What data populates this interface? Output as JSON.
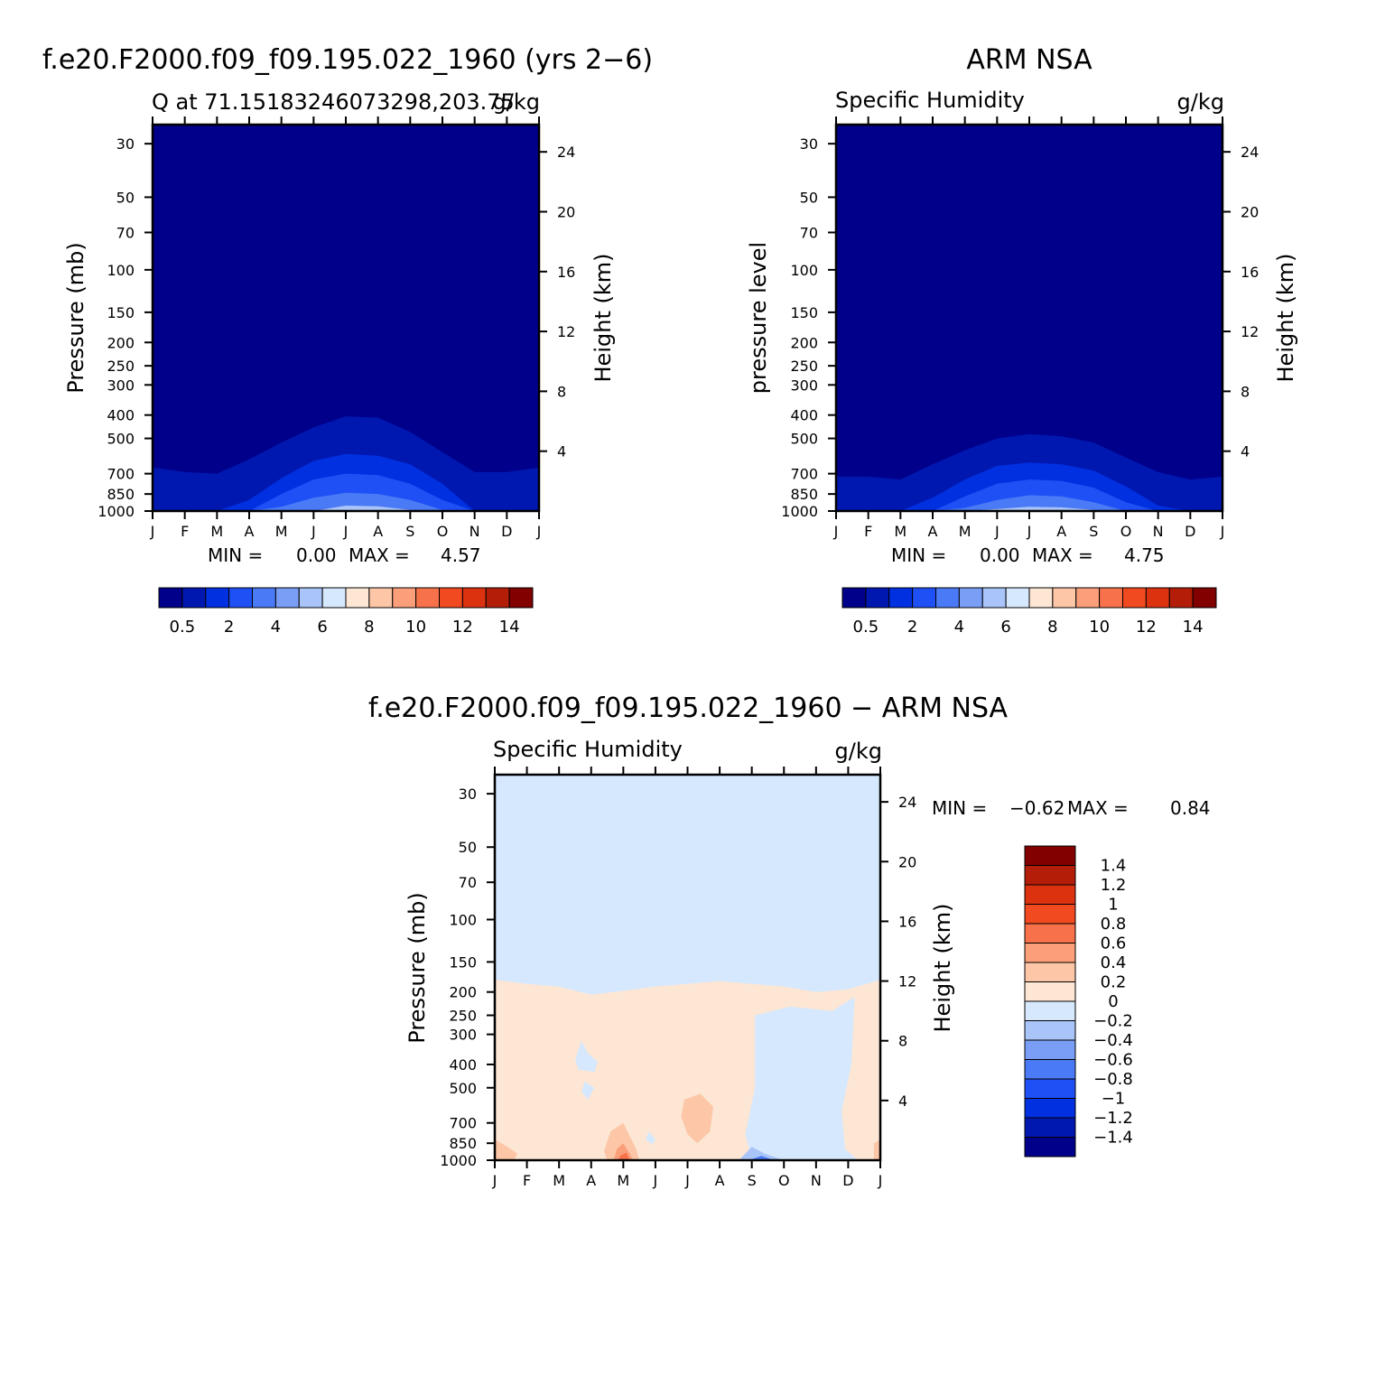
{
  "palette": {
    "level_colors": [
      "#00008a",
      "#0018b0",
      "#0030e0",
      "#1e50f5",
      "#4a7af5",
      "#7a9ef5",
      "#a8c4f8",
      "#d6e8fd",
      "#fde6d4",
      "#fcc6a7",
      "#fb9f7a",
      "#f7724a",
      "#f24a20",
      "#dc3210",
      "#b41e08",
      "#820000"
    ],
    "diff_colors": [
      "#00008a",
      "#0018b0",
      "#0030e0",
      "#1e50f5",
      "#4a7af5",
      "#7a9ef5",
      "#a8c4f8",
      "#d6e8fd",
      "#fde6d4",
      "#fcc6a7",
      "#fb9f7a",
      "#f7724a",
      "#f24a20",
      "#dc3210",
      "#b41e08",
      "#820000"
    ]
  },
  "panels": {
    "model": {
      "title": "f.e20.F2000.f09_f09.195.022_1960 (yrs 2−6)",
      "left_subtitle": "Q at 71.15183246073298,203.75",
      "right_subtitle": "g/kg",
      "ylabel": "Pressure (mb)",
      "ylabel_right": "Height (km)",
      "min_label": "MIN =",
      "min_value": "0.00",
      "max_label": "MAX =",
      "max_value": "4.57"
    },
    "obs": {
      "title": "ARM NSA",
      "left_subtitle": "Specific Humidity",
      "right_subtitle": "g/kg",
      "ylabel": "pressure level",
      "ylabel_right": "Height (km)",
      "min_label": "MIN =",
      "min_value": "0.00",
      "max_label": "MAX =",
      "max_value": "4.75"
    },
    "diff": {
      "title": "f.e20.F2000.f09_f09.195.022_1960 − ARM NSA",
      "left_subtitle": "Specific Humidity",
      "right_subtitle": "g/kg",
      "ylabel": "Pressure (mb)",
      "ylabel_right": "Height (km)",
      "min_label": "MIN =",
      "min_value": "−0.62",
      "max_label": "MAX =",
      "max_value": "0.84"
    }
  },
  "chart_data": [
    {
      "type": "heatmap",
      "title": "f.e20.F2000.f09_f09.195.022_1960 (yrs 2−6)",
      "subtitle": "Q at 71.15183246073298,203.75",
      "units": "g/kg",
      "x_tick_labels": [
        "J",
        "F",
        "M",
        "A",
        "M",
        "J",
        "J",
        "A",
        "S",
        "O",
        "N",
        "D",
        "J"
      ],
      "y_tick_labels": [
        "30",
        "50",
        "70",
        "100",
        "150",
        "200",
        "250",
        "300",
        "400",
        "500",
        "700",
        "850",
        "1000"
      ],
      "y_tick_values": [
        30,
        50,
        70,
        100,
        150,
        200,
        250,
        300,
        400,
        500,
        700,
        850,
        1000
      ],
      "y_right_tick_labels": [
        "24",
        "20",
        "16",
        "12",
        "8",
        "4"
      ],
      "y_right_tick_values": [
        24,
        20,
        16,
        12,
        8,
        4
      ],
      "xlabel": "",
      "ylabel": "Pressure (mb)",
      "ylabel_right": "Height (km)",
      "ylim": [
        1000,
        25
      ],
      "colorbar_labels": [
        "0.5",
        "2",
        "4",
        "6",
        "8",
        "10",
        "12",
        "14"
      ],
      "min": 0.0,
      "max": 4.57,
      "contour_tops_hPa": {
        "months": [
          0,
          1,
          2,
          3,
          4,
          5,
          6,
          7,
          8,
          9,
          10,
          11,
          12
        ],
        "level_0.5": [
          660,
          690,
          700,
          610,
          520,
          450,
          405,
          410,
          470,
          570,
          690,
          690,
          660
        ],
        "level_1": [
          1000,
          1000,
          1000,
          900,
          730,
          620,
          580,
          590,
          640,
          770,
          1000,
          1000,
          1000
        ],
        "level_2": [
          1000,
          1000,
          1000,
          1000,
          850,
          740,
          700,
          710,
          770,
          900,
          1000,
          1000,
          1000
        ],
        "level_3": [
          1000,
          1000,
          1000,
          1000,
          960,
          880,
          840,
          850,
          900,
          990,
          1000,
          1000,
          1000
        ],
        "level_4": [
          1000,
          1000,
          1000,
          1000,
          1000,
          1000,
          950,
          955,
          990,
          1000,
          1000,
          1000,
          1000
        ]
      }
    },
    {
      "type": "heatmap",
      "title": "ARM NSA",
      "subtitle": "Specific Humidity",
      "units": "g/kg",
      "x_tick_labels": [
        "J",
        "F",
        "M",
        "A",
        "M",
        "J",
        "J",
        "A",
        "S",
        "O",
        "N",
        "D",
        "J"
      ],
      "y_tick_labels": [
        "30",
        "50",
        "70",
        "100",
        "150",
        "200",
        "250",
        "300",
        "400",
        "500",
        "700",
        "850",
        "1000"
      ],
      "y_tick_values": [
        30,
        50,
        70,
        100,
        150,
        200,
        250,
        300,
        400,
        500,
        700,
        850,
        1000
      ],
      "y_right_tick_labels": [
        "24",
        "20",
        "16",
        "12",
        "8",
        "4"
      ],
      "y_right_tick_values": [
        24,
        20,
        16,
        12,
        8,
        4
      ],
      "xlabel": "",
      "ylabel": "pressure level",
      "ylabel_right": "Height (km)",
      "ylim": [
        1000,
        25
      ],
      "colorbar_labels": [
        "0.5",
        "2",
        "4",
        "6",
        "8",
        "10",
        "12",
        "14"
      ],
      "min": 0.0,
      "max": 4.75,
      "contour_tops_hPa": {
        "months": [
          0,
          1,
          2,
          3,
          4,
          5,
          6,
          7,
          8,
          9,
          10,
          11,
          12
        ],
        "level_0.5": [
          720,
          720,
          740,
          640,
          560,
          500,
          480,
          490,
          520,
          600,
          690,
          740,
          720
        ],
        "level_1": [
          1000,
          1000,
          1000,
          880,
          740,
          650,
          630,
          640,
          680,
          790,
          950,
          1000,
          1000
        ],
        "level_2": [
          1000,
          1000,
          1000,
          1000,
          870,
          770,
          740,
          750,
          800,
          920,
          1000,
          1000,
          1000
        ],
        "level_3": [
          1000,
          1000,
          1000,
          1000,
          970,
          900,
          860,
          870,
          920,
          1000,
          1000,
          1000,
          1000
        ],
        "level_4": [
          1000,
          1000,
          1000,
          1000,
          1000,
          980,
          960,
          965,
          990,
          1000,
          1000,
          1000,
          1000
        ]
      }
    },
    {
      "type": "heatmap",
      "title": "f.e20.F2000.f09_f09.195.022_1960 − ARM NSA",
      "subtitle": "Specific Humidity",
      "units": "g/kg",
      "x_tick_labels": [
        "J",
        "F",
        "M",
        "A",
        "M",
        "J",
        "J",
        "A",
        "S",
        "O",
        "N",
        "D",
        "J"
      ],
      "y_tick_labels": [
        "30",
        "50",
        "70",
        "100",
        "150",
        "200",
        "250",
        "300",
        "400",
        "500",
        "700",
        "850",
        "1000"
      ],
      "y_tick_values": [
        30,
        50,
        70,
        100,
        150,
        200,
        250,
        300,
        400,
        500,
        700,
        850,
        1000
      ],
      "y_right_tick_labels": [
        "24",
        "20",
        "16",
        "12",
        "8",
        "4"
      ],
      "y_right_tick_values": [
        24,
        20,
        16,
        12,
        8,
        4
      ],
      "xlabel": "",
      "ylabel": "Pressure (mb)",
      "ylabel_right": "Height (km)",
      "ylim": [
        1000,
        25
      ],
      "colorbar_labels": [
        "1.4",
        "1.2",
        "1",
        "0.8",
        "0.6",
        "0.4",
        "0.2",
        "0",
        "−0.2",
        "−0.4",
        "−0.6",
        "−0.8",
        "−1",
        "−1.2",
        "−1.4"
      ],
      "min": -0.62,
      "max": 0.84,
      "positive_region_top_hPa": {
        "months": [
          0,
          1,
          2,
          3,
          4,
          5,
          6,
          7,
          8,
          9,
          10,
          11,
          12
        ],
        "values": [
          178,
          185,
          190,
          205,
          198,
          190,
          185,
          180,
          185,
          190,
          200,
          195,
          178
        ]
      }
    }
  ]
}
